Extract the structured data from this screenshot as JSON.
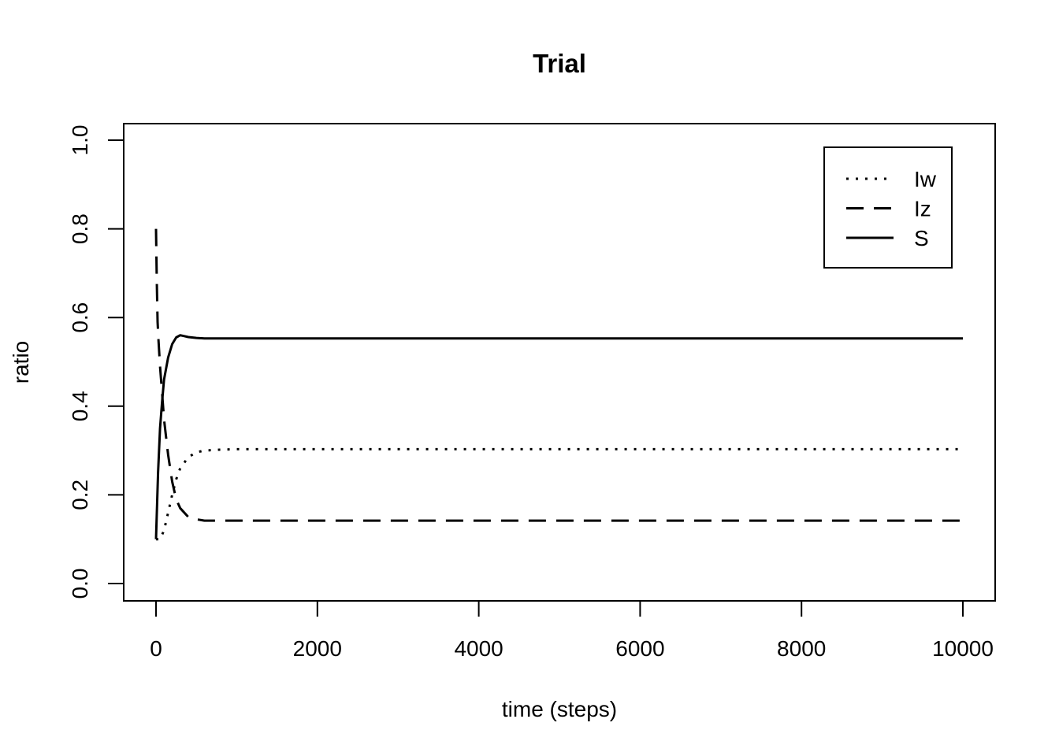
{
  "chart_data": {
    "type": "line",
    "title": "Trial",
    "xlabel": "time (steps)",
    "ylabel": "ratio",
    "xlim": [
      0,
      10000
    ],
    "ylim": [
      0,
      1
    ],
    "xticks": [
      0,
      2000,
      4000,
      6000,
      8000,
      10000
    ],
    "xtick_labels": [
      "0",
      "2000",
      "4000",
      "6000",
      "8000",
      "10000"
    ],
    "yticks": [
      0,
      0.2,
      0.4,
      0.6,
      0.8,
      1.0
    ],
    "ytick_labels": [
      "0.0",
      "0.2",
      "0.4",
      "0.6",
      "0.8",
      "1.0"
    ],
    "grid": false,
    "legend_position": "top-right",
    "series": [
      {
        "name": "Iw",
        "line_style": "dotted",
        "color": "#000000",
        "x": [
          0,
          25,
          50,
          75,
          100,
          150,
          200,
          250,
          300,
          400,
          500,
          600,
          800,
          1000,
          1500,
          2000,
          4000,
          6000,
          8000,
          10000
        ],
        "y": [
          0.1,
          0.1,
          0.1,
          0.11,
          0.12,
          0.16,
          0.2,
          0.235,
          0.26,
          0.285,
          0.296,
          0.3,
          0.302,
          0.303,
          0.303,
          0.303,
          0.303,
          0.303,
          0.303,
          0.303
        ]
      },
      {
        "name": "Iz",
        "line_style": "dashed",
        "color": "#000000",
        "x": [
          0,
          10,
          20,
          30,
          40,
          50,
          75,
          100,
          150,
          200,
          250,
          300,
          400,
          500,
          600,
          800,
          1000,
          2000,
          4000,
          6000,
          8000,
          10000
        ],
        "y": [
          0.8,
          0.68,
          0.59,
          0.55,
          0.52,
          0.49,
          0.43,
          0.37,
          0.29,
          0.23,
          0.19,
          0.17,
          0.15,
          0.145,
          0.142,
          0.142,
          0.142,
          0.142,
          0.142,
          0.142,
          0.142,
          0.142
        ]
      },
      {
        "name": "S",
        "line_style": "solid",
        "color": "#000000",
        "x": [
          0,
          25,
          50,
          75,
          100,
          150,
          200,
          250,
          300,
          350,
          400,
          500,
          600,
          800,
          1000,
          2000,
          4000,
          6000,
          8000,
          10000
        ],
        "y": [
          0.1,
          0.25,
          0.35,
          0.41,
          0.46,
          0.51,
          0.54,
          0.555,
          0.56,
          0.558,
          0.556,
          0.554,
          0.553,
          0.553,
          0.553,
          0.553,
          0.553,
          0.553,
          0.553,
          0.553
        ]
      }
    ]
  }
}
